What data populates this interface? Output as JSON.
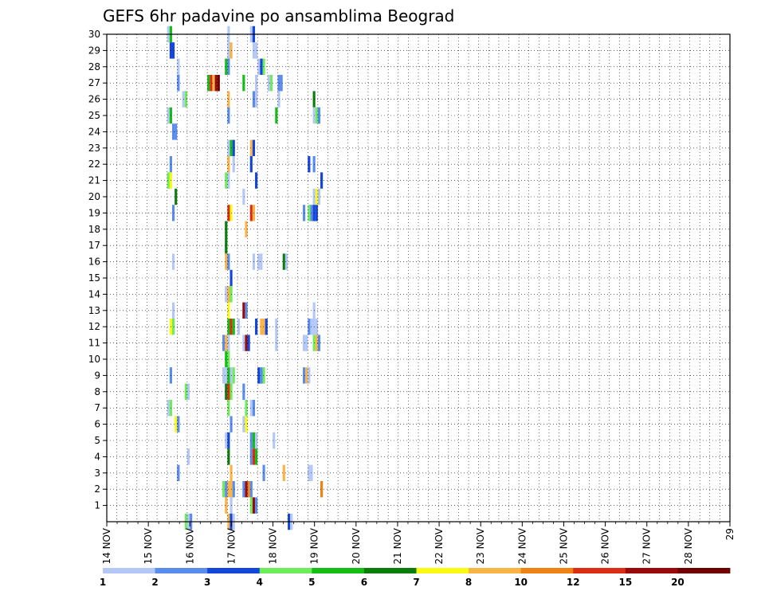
{
  "chart_data": {
    "type": "heatmap",
    "title": "GEFS 6hr padavine po ansamblima Beograd",
    "xlabel": "",
    "ylabel": "",
    "x_tick_labels": [
      "14 NOV",
      "15 NOV",
      "16 NOV",
      "17 NOV",
      "18 NOV",
      "19 NOV",
      "20 NOV",
      "21 NOV",
      "22 NOV",
      "23 NOV",
      "24 NOV",
      "25 NOV",
      "26 NOV",
      "27 NOV",
      "28 NOV",
      "29"
    ],
    "x_range": [
      0,
      62
    ],
    "steps_per_day": 4,
    "y_range": [
      0,
      30
    ],
    "y_ticks": [
      1,
      2,
      3,
      4,
      5,
      6,
      7,
      8,
      9,
      10,
      11,
      12,
      13,
      14,
      15,
      16,
      17,
      18,
      19,
      20,
      21,
      22,
      23,
      24,
      25,
      26,
      27,
      28,
      29,
      30
    ],
    "grid": true,
    "legend": "colorbar-bottom",
    "colorbar_labels": [
      "1",
      "2",
      "3",
      "4",
      "5",
      "6",
      "7",
      "8",
      "10",
      "12",
      "15",
      "20"
    ],
    "colors": [
      "#b4c8f8",
      "#5a8ced",
      "#1446dc",
      "#6eed5a",
      "#14be14",
      "#0a7d0a",
      "#fafa14",
      "#fab446",
      "#f08214",
      "#dc2d14",
      "#9b0a0a",
      "#6e0000"
    ],
    "cells": [
      [
        24,
        30,
        1
      ],
      [
        25,
        30,
        5
      ],
      [
        48,
        30,
        1
      ],
      [
        57,
        30,
        1
      ],
      [
        58,
        30,
        3
      ],
      [
        25,
        29,
        3
      ],
      [
        26,
        29,
        3
      ],
      [
        48,
        29,
        1
      ],
      [
        49,
        29,
        8
      ],
      [
        58,
        29,
        1
      ],
      [
        59,
        29,
        1
      ],
      [
        60,
        28,
        1
      ],
      [
        61,
        28,
        3
      ],
      [
        62,
        28,
        4
      ],
      [
        28,
        28,
        1
      ],
      [
        47,
        28,
        5
      ],
      [
        48,
        28,
        2
      ],
      [
        28,
        27,
        2
      ],
      [
        40,
        27,
        5
      ],
      [
        41,
        27,
        10
      ],
      [
        42,
        27,
        8
      ],
      [
        43,
        27,
        11
      ],
      [
        44,
        27,
        12
      ],
      [
        54,
        27,
        5
      ],
      [
        59,
        27,
        1
      ],
      [
        64,
        27,
        1
      ],
      [
        65,
        27,
        4
      ],
      [
        68,
        27,
        2
      ],
      [
        69,
        27,
        2
      ],
      [
        30,
        26,
        1
      ],
      [
        31,
        26,
        4
      ],
      [
        48,
        26,
        8
      ],
      [
        58,
        26,
        2
      ],
      [
        59,
        26,
        1
      ],
      [
        68,
        26,
        1
      ],
      [
        82,
        26,
        6
      ],
      [
        24,
        25,
        1
      ],
      [
        25,
        25,
        5
      ],
      [
        48,
        25,
        2
      ],
      [
        67,
        25,
        5
      ],
      [
        82,
        25,
        1
      ],
      [
        83,
        25,
        4
      ],
      [
        84,
        25,
        2
      ],
      [
        26,
        24,
        2
      ],
      [
        27,
        24,
        2
      ],
      [
        48,
        23,
        1
      ],
      [
        49,
        23,
        5
      ],
      [
        50,
        23,
        3
      ],
      [
        57,
        23,
        8
      ],
      [
        58,
        23,
        3
      ],
      [
        25,
        22,
        2
      ],
      [
        48,
        22,
        8
      ],
      [
        50,
        22,
        1
      ],
      [
        57,
        22,
        3
      ],
      [
        80,
        22,
        3
      ],
      [
        82,
        22,
        2
      ],
      [
        24,
        21,
        4
      ],
      [
        25,
        21,
        7
      ],
      [
        47,
        21,
        4
      ],
      [
        48,
        21,
        1
      ],
      [
        59,
        21,
        3
      ],
      [
        85,
        21,
        3
      ],
      [
        27,
        20,
        6
      ],
      [
        54,
        20,
        1
      ],
      [
        82,
        20,
        1
      ],
      [
        83,
        20,
        7
      ],
      [
        84,
        20,
        1
      ],
      [
        26,
        19,
        2
      ],
      [
        48,
        19,
        10
      ],
      [
        49,
        19,
        7
      ],
      [
        57,
        19,
        10
      ],
      [
        58,
        19,
        8
      ],
      [
        78,
        19,
        2
      ],
      [
        80,
        19,
        4
      ],
      [
        81,
        19,
        2
      ],
      [
        82,
        19,
        3
      ],
      [
        83,
        19,
        3
      ],
      [
        47,
        18,
        6
      ],
      [
        55,
        18,
        8
      ],
      [
        47,
        17,
        6
      ],
      [
        47,
        16,
        8
      ],
      [
        48,
        16,
        2
      ],
      [
        26,
        16,
        1
      ],
      [
        58,
        16,
        1
      ],
      [
        60,
        16,
        1
      ],
      [
        61,
        16,
        1
      ],
      [
        70,
        16,
        6
      ],
      [
        71,
        16,
        1
      ],
      [
        49,
        15,
        3
      ],
      [
        47,
        14,
        1
      ],
      [
        48,
        14,
        8
      ],
      [
        49,
        14,
        4
      ],
      [
        48,
        13,
        7
      ],
      [
        26,
        13,
        1
      ],
      [
        54,
        13,
        11
      ],
      [
        55,
        13,
        2
      ],
      [
        82,
        13,
        1
      ],
      [
        25,
        12,
        7
      ],
      [
        26,
        12,
        4
      ],
      [
        48,
        12,
        5
      ],
      [
        49,
        12,
        10
      ],
      [
        50,
        12,
        5
      ],
      [
        52,
        12,
        1
      ],
      [
        59,
        12,
        3
      ],
      [
        61,
        12,
        8
      ],
      [
        62,
        12,
        8
      ],
      [
        63,
        12,
        3
      ],
      [
        67,
        12,
        1
      ],
      [
        80,
        12,
        2
      ],
      [
        81,
        12,
        1
      ],
      [
        82,
        12,
        1
      ],
      [
        83,
        12,
        1
      ],
      [
        46,
        11,
        2
      ],
      [
        47,
        11,
        8
      ],
      [
        48,
        11,
        1
      ],
      [
        54,
        11,
        1
      ],
      [
        55,
        11,
        11
      ],
      [
        56,
        11,
        3
      ],
      [
        67,
        11,
        1
      ],
      [
        78,
        11,
        1
      ],
      [
        79,
        11,
        1
      ],
      [
        82,
        11,
        4
      ],
      [
        83,
        11,
        8
      ],
      [
        84,
        11,
        2
      ],
      [
        47,
        10,
        5
      ],
      [
        48,
        10,
        4
      ],
      [
        25,
        9,
        2
      ],
      [
        46,
        9,
        1
      ],
      [
        47,
        9,
        1
      ],
      [
        48,
        9,
        5
      ],
      [
        49,
        9,
        1
      ],
      [
        50,
        9,
        4
      ],
      [
        60,
        9,
        3
      ],
      [
        61,
        9,
        2
      ],
      [
        62,
        9,
        4
      ],
      [
        78,
        9,
        2
      ],
      [
        79,
        9,
        8
      ],
      [
        80,
        9,
        1
      ],
      [
        31,
        8,
        4
      ],
      [
        32,
        8,
        1
      ],
      [
        47,
        8,
        6
      ],
      [
        48,
        8,
        10
      ],
      [
        49,
        8,
        4
      ],
      [
        54,
        8,
        2
      ],
      [
        24,
        7,
        1
      ],
      [
        25,
        7,
        4
      ],
      [
        48,
        7,
        4
      ],
      [
        55,
        7,
        4
      ],
      [
        57,
        7,
        1
      ],
      [
        58,
        7,
        2
      ],
      [
        27,
        6,
        7
      ],
      [
        28,
        6,
        2
      ],
      [
        49,
        6,
        2
      ],
      [
        54,
        6,
        1
      ],
      [
        55,
        6,
        7
      ],
      [
        47,
        5,
        1
      ],
      [
        48,
        5,
        3
      ],
      [
        57,
        5,
        2
      ],
      [
        58,
        5,
        5
      ],
      [
        59,
        5,
        1
      ],
      [
        66,
        5,
        1
      ],
      [
        32,
        4,
        1
      ],
      [
        48,
        4,
        6
      ],
      [
        57,
        4,
        2
      ],
      [
        58,
        4,
        10
      ],
      [
        59,
        4,
        5
      ],
      [
        28,
        3,
        2
      ],
      [
        49,
        3,
        8
      ],
      [
        62,
        3,
        2
      ],
      [
        70,
        3,
        8
      ],
      [
        80,
        3,
        1
      ],
      [
        81,
        3,
        1
      ],
      [
        46,
        2,
        4
      ],
      [
        47,
        2,
        2
      ],
      [
        48,
        2,
        8
      ],
      [
        49,
        2,
        8
      ],
      [
        50,
        2,
        2
      ],
      [
        54,
        2,
        2
      ],
      [
        55,
        2,
        11
      ],
      [
        56,
        2,
        9
      ],
      [
        57,
        2,
        2
      ],
      [
        85,
        2,
        9
      ],
      [
        47,
        1,
        8
      ],
      [
        49,
        1,
        1
      ],
      [
        57,
        1,
        4
      ],
      [
        58,
        1,
        11
      ],
      [
        59,
        1,
        2
      ],
      [
        31,
        0,
        4
      ],
      [
        32,
        0,
        1
      ],
      [
        33,
        0,
        2
      ],
      [
        48,
        0,
        8
      ],
      [
        49,
        0,
        3
      ],
      [
        50,
        0,
        1
      ],
      [
        72,
        0,
        3
      ],
      [
        73,
        0,
        1
      ]
    ]
  }
}
